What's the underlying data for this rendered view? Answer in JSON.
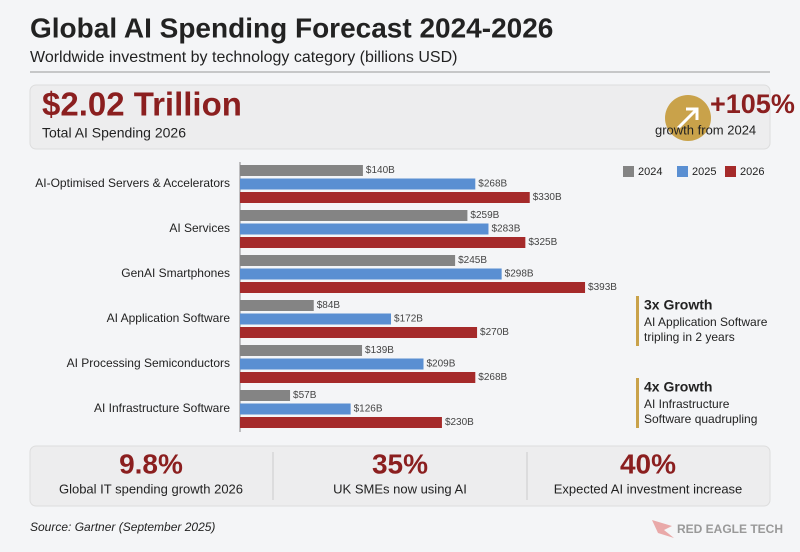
{
  "header": {
    "title": "Global AI Spending Forecast 2024-2026",
    "subtitle": "Worldwide investment by technology category (billions USD)"
  },
  "headline": {
    "value": "$2.02 Trillion",
    "label": "Total AI Spending 2026",
    "growth": "+105%",
    "growth_label": "growth from 2024"
  },
  "chart_data": {
    "type": "bar",
    "categories": [
      "AI-Optimised Servers & Accelerators",
      "AI Services",
      "GenAI Smartphones",
      "AI Application Software",
      "AI Processing Semiconductors",
      "AI Infrastructure Software"
    ],
    "series": [
      {
        "name": "2024",
        "color": "#848484",
        "values": [
          140,
          259,
          245,
          84,
          139,
          57
        ],
        "value_labels": [
          "$140B",
          "$259B",
          "$245B",
          "$84B",
          "$139B",
          "$57B"
        ]
      },
      {
        "name": "2025",
        "color": "#5a8fd2",
        "values": [
          268,
          283,
          298,
          172,
          209,
          126
        ],
        "value_labels": [
          "$268B",
          "$283B",
          "$298B",
          "$172B",
          "$209B",
          "$126B"
        ]
      },
      {
        "name": "2026",
        "color": "#a52a2a",
        "values": [
          330,
          325,
          393,
          270,
          268,
          230
        ],
        "value_labels": [
          "$330B",
          "$325B",
          "$393B",
          "$270B",
          "$268B",
          "$230B"
        ]
      }
    ]
  },
  "annotations": [
    {
      "title": "3x Growth",
      "lines": [
        "AI Application Software",
        "tripling in 2 years"
      ]
    },
    {
      "title": "4x Growth",
      "lines": [
        "AI Infrastructure",
        "Software quadrupling"
      ]
    }
  ],
  "stats": [
    {
      "value": "9.8%",
      "label": "Global IT spending growth 2026"
    },
    {
      "value": "35%",
      "label": "UK SMEs now using AI"
    },
    {
      "value": "40%",
      "label": "Expected AI investment increase"
    }
  ],
  "footer": {
    "source": "Source: Gartner (September 2025)",
    "brand": "RED EAGLE TECH"
  }
}
